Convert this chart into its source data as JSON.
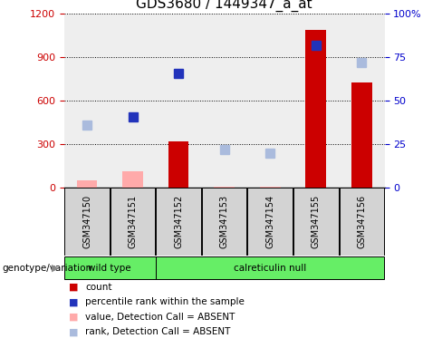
{
  "title": "GDS3680 / 1449347_a_at",
  "samples": [
    "GSM347150",
    "GSM347151",
    "GSM347152",
    "GSM347153",
    "GSM347154",
    "GSM347155",
    "GSM347156"
  ],
  "bar_values": [
    null,
    null,
    320,
    null,
    null,
    1090,
    730
  ],
  "bar_absent_values": [
    50,
    115,
    null,
    10,
    10,
    null,
    null
  ],
  "blue_squares_right": [
    null,
    41,
    66,
    null,
    null,
    82,
    null
  ],
  "blue_absent_squares_right": [
    36,
    null,
    null,
    22,
    20,
    null,
    72
  ],
  "ylim_left": [
    0,
    1200
  ],
  "ylim_right": [
    0,
    100
  ],
  "yticks_left": [
    0,
    300,
    600,
    900,
    1200
  ],
  "yticks_right": [
    0,
    25,
    50,
    75,
    100
  ],
  "yticklabels_right": [
    "0",
    "25",
    "50",
    "75",
    "100%"
  ],
  "bar_color": "#cc0000",
  "bar_absent_color": "#ffaaaa",
  "blue_color": "#2233bb",
  "blue_absent_color": "#aabbdd",
  "bar_width": 0.45,
  "wt_color": "#66ee66",
  "cn_color": "#66ee66",
  "legend_items": [
    {
      "label": "count",
      "color": "#cc0000"
    },
    {
      "label": "percentile rank within the sample",
      "color": "#2233bb"
    },
    {
      "label": "value, Detection Call = ABSENT",
      "color": "#ffaaaa"
    },
    {
      "label": "rank, Detection Call = ABSENT",
      "color": "#aabbdd"
    }
  ],
  "genotype_label": "genotype/variation",
  "plot_bg_color": "#eeeeee",
  "grid_color": "#000000",
  "title_fontsize": 11,
  "tick_fontsize": 8,
  "axis_left_color": "#cc0000",
  "axis_right_color": "#0000cc"
}
